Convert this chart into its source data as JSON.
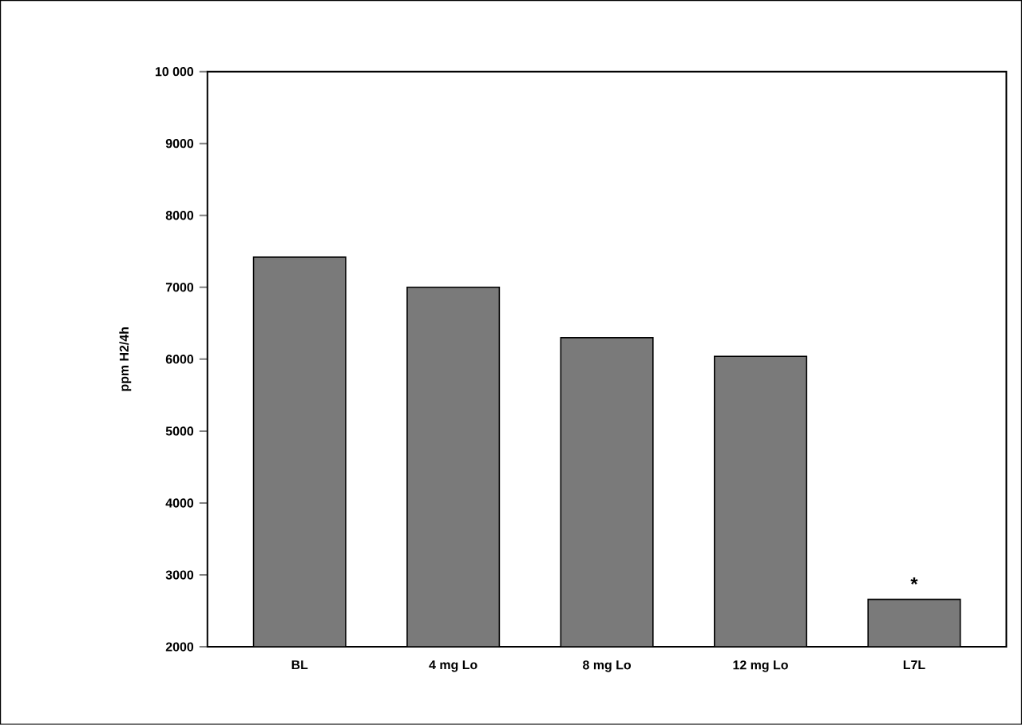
{
  "chart_data": {
    "type": "bar",
    "ylabel": "ppm H2/4h",
    "categories": [
      "BL",
      "4 mg Lo",
      "8 mg Lo",
      "12 mg Lo",
      "L7L"
    ],
    "values": [
      7420,
      7000,
      6300,
      6040,
      2660
    ],
    "color": "#7a7a7a",
    "ylim": [
      2000,
      10000
    ],
    "yticks": [
      2000,
      3000,
      4000,
      5000,
      6000,
      7000,
      8000,
      9000,
      {
        "value": 10000,
        "label": "10 000"
      }
    ],
    "annotations": [
      "*"
    ]
  }
}
